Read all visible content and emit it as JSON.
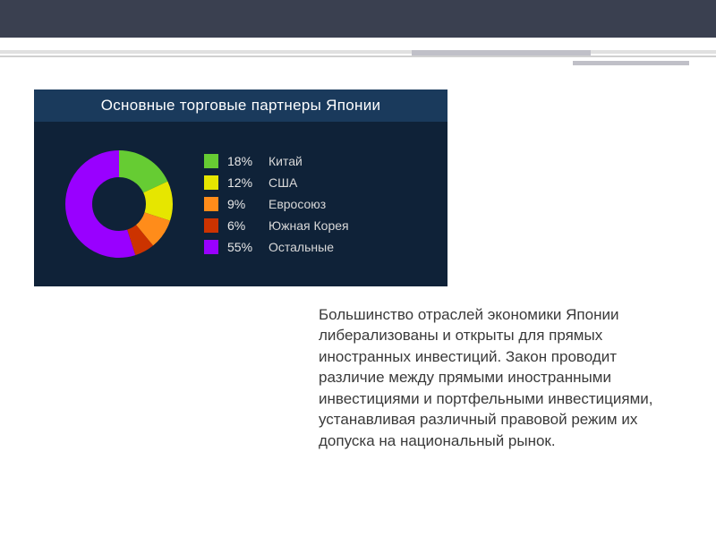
{
  "layout": {
    "top_bar_color": "#3a4050",
    "background_color": "#ffffff",
    "accent_color": "#c0c0c8"
  },
  "chart": {
    "type": "donut",
    "title": "Основные торговые партнеры Японии",
    "title_bg": "#1a3a5c",
    "card_bg": "#0f2238",
    "title_fontsize": 17,
    "legend_fontsize": 14,
    "donut_outer_r": 60,
    "donut_inner_r": 30,
    "stroke_width": 30,
    "segments": [
      {
        "label": "Китай",
        "pct": 18,
        "color": "#66cc33"
      },
      {
        "label": "США",
        "pct": 12,
        "color": "#e6e600"
      },
      {
        "label": "Евросоюз",
        "pct": 9,
        "color": "#ff8c1a"
      },
      {
        "label": "Южная Корея",
        "pct": 6,
        "color": "#cc3300"
      },
      {
        "label": "Остальные",
        "pct": 55,
        "color": "#9900ff"
      }
    ]
  },
  "paragraph": {
    "text": "Большинство отраслей экономики Японии либерализованы и открыты для прямых иностранных инвестиций. Закон проводит различие между прямыми иностранными инвестициями и портфельными инвестициями, устанавливая различный правовой режим их допуска на национальный рынок.",
    "fontsize": 17,
    "color": "#3a3a3a"
  }
}
